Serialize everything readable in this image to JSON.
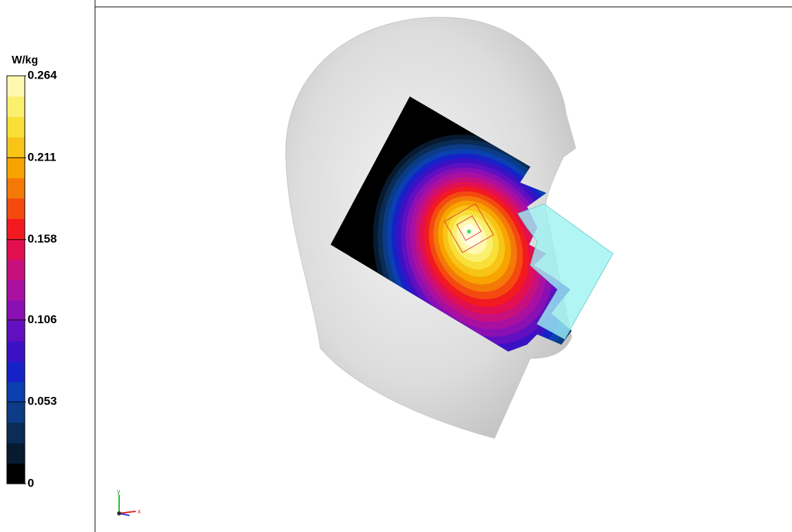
{
  "legend": {
    "unit": "W/kg",
    "ticks": [
      0.264,
      0.211,
      0.158,
      0.106,
      0.053,
      0
    ]
  },
  "axes_triad": {
    "y": "y",
    "x": "x"
  }
}
